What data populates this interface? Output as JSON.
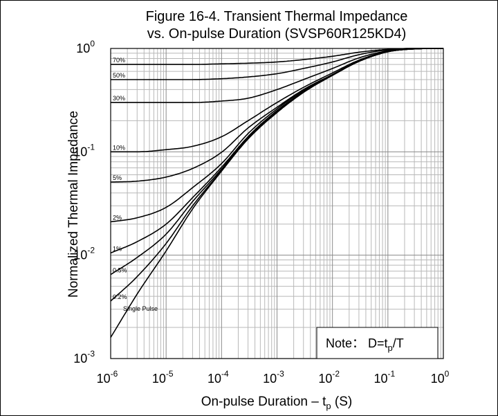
{
  "chart_data": {
    "type": "line",
    "title": "Figure 16-4. Transient Thermal Impedance",
    "subtitle": "vs. On-pulse Duration (SVSP60R125KD4)",
    "xlabel": {
      "main": "On-pulse Duration  –  t",
      "sub": "p",
      "unit": " (S)"
    },
    "ylabel": "Normalized Thermal Impedance",
    "x_scale": "log",
    "y_scale": "log",
    "xlim": [
      1e-06,
      1
    ],
    "ylim": [
      0.001,
      1
    ],
    "grid": true,
    "x_ticks": [
      {
        "base": "10",
        "exp": "-6"
      },
      {
        "base": "10",
        "exp": "-5"
      },
      {
        "base": "10",
        "exp": "-4"
      },
      {
        "base": "10",
        "exp": "-3"
      },
      {
        "base": "10",
        "exp": "-2"
      },
      {
        "base": "10",
        "exp": "-1"
      },
      {
        "base": "10",
        "exp": "0"
      }
    ],
    "y_ticks": [
      {
        "base": "10",
        "exp": "-3"
      },
      {
        "base": "10",
        "exp": "-2"
      },
      {
        "base": "10",
        "exp": "-1"
      },
      {
        "base": "10",
        "exp": "0"
      }
    ],
    "note": {
      "prefix": "Note： D=t",
      "sub": "p",
      "suffix": "/T"
    },
    "x": [
      1e-06,
      3e-06,
      1e-05,
      3e-05,
      0.0001,
      0.0003,
      0.001,
      0.003,
      0.01,
      0.03,
      0.1,
      0.3,
      1
    ],
    "series": [
      {
        "name": "70%",
        "values": [
          0.7,
          0.7,
          0.7,
          0.7,
          0.71,
          0.72,
          0.74,
          0.78,
          0.84,
          0.92,
          0.98,
          1.0,
          1.0
        ]
      },
      {
        "name": "50%",
        "values": [
          0.5,
          0.5,
          0.5,
          0.5,
          0.51,
          0.53,
          0.57,
          0.64,
          0.74,
          0.87,
          0.97,
          1.0,
          1.0
        ]
      },
      {
        "name": "30%",
        "values": [
          0.3,
          0.3,
          0.3,
          0.3,
          0.31,
          0.33,
          0.4,
          0.5,
          0.64,
          0.81,
          0.95,
          1.0,
          1.0
        ]
      },
      {
        "name": "10%",
        "values": [
          0.1,
          0.1,
          0.105,
          0.113,
          0.14,
          0.2,
          0.3,
          0.42,
          0.58,
          0.77,
          0.94,
          0.99,
          1.0
        ]
      },
      {
        "name": "5%",
        "values": [
          0.051,
          0.052,
          0.057,
          0.069,
          0.099,
          0.17,
          0.27,
          0.4,
          0.56,
          0.76,
          0.93,
          0.99,
          1.0
        ]
      },
      {
        "name": "2%",
        "values": [
          0.021,
          0.023,
          0.029,
          0.045,
          0.077,
          0.15,
          0.26,
          0.39,
          0.55,
          0.75,
          0.93,
          0.99,
          1.0
        ]
      },
      {
        "name": "1%",
        "values": [
          0.0105,
          0.0135,
          0.02,
          0.036,
          0.071,
          0.14,
          0.25,
          0.38,
          0.55,
          0.75,
          0.93,
          0.99,
          1.0
        ]
      },
      {
        "name": "0.5%",
        "values": [
          0.0065,
          0.0095,
          0.016,
          0.033,
          0.068,
          0.14,
          0.25,
          0.38,
          0.55,
          0.75,
          0.93,
          0.99,
          1.0
        ]
      },
      {
        "name": "0.2%",
        "values": [
          0.0036,
          0.0062,
          0.013,
          0.03,
          0.066,
          0.135,
          0.245,
          0.38,
          0.55,
          0.75,
          0.93,
          0.99,
          1.0
        ]
      },
      {
        "name": "Single Pulse",
        "values": [
          0.0016,
          0.0042,
          0.011,
          0.028,
          0.065,
          0.133,
          0.24,
          0.375,
          0.55,
          0.75,
          0.93,
          0.99,
          1.0
        ]
      }
    ]
  }
}
